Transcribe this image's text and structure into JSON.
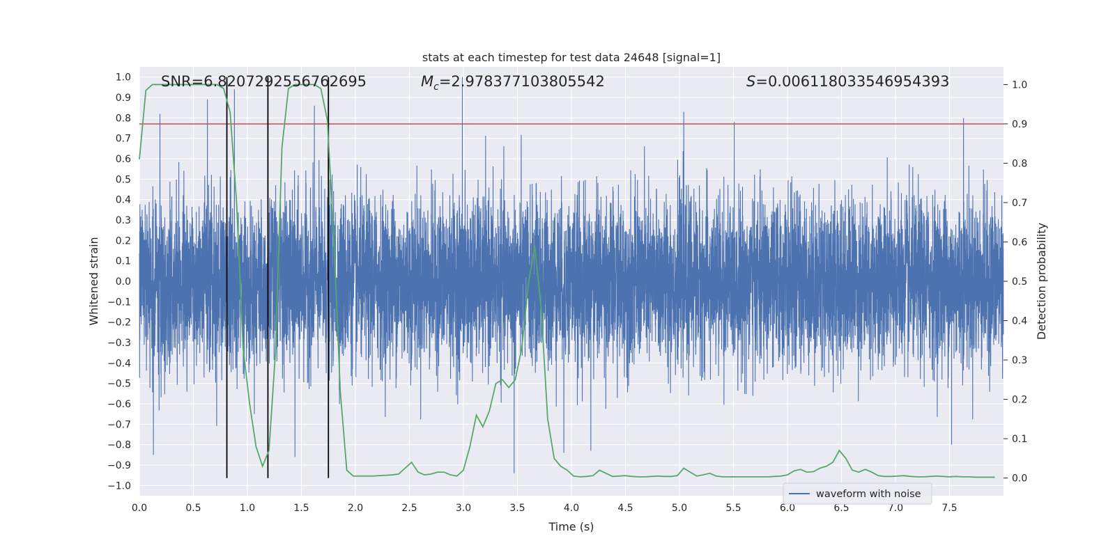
{
  "chart_data": {
    "type": "line",
    "title": "stats at each timestep for test data 24648 [signal=1]",
    "xlabel": "Time (s)",
    "ylabel": "Whitened strain",
    "y2label": "Detection probability",
    "xlim": [
      0.0,
      8.0
    ],
    "ylim": [
      -1.05,
      1.05
    ],
    "y2lim": [
      -0.045,
      1.045
    ],
    "xticks": [
      "0.0",
      "0.5",
      "1.0",
      "1.5",
      "2.0",
      "2.5",
      "3.0",
      "3.5",
      "4.0",
      "4.5",
      "5.0",
      "5.5",
      "6.0",
      "6.5",
      "7.0",
      "7.5"
    ],
    "yticks": [
      "1.0",
      "0.9",
      "0.8",
      "0.7",
      "0.6",
      "0.5",
      "0.4",
      "0.3",
      "0.2",
      "0.1",
      "0.0",
      "−0.1",
      "−0.2",
      "−0.3",
      "−0.4",
      "−0.5",
      "−0.6",
      "−0.7",
      "−0.8",
      "−0.9",
      "−1.0"
    ],
    "y2ticks": [
      "1.0",
      "0.9",
      "0.8",
      "0.7",
      "0.6",
      "0.5",
      "0.4",
      "0.3",
      "0.2",
      "0.1",
      "0.0"
    ],
    "grid": true,
    "legend": {
      "placement": "lower-right",
      "entries": [
        "waveform with noise"
      ]
    },
    "annotations": {
      "snr": "SNR=6.8207292556762695",
      "mc_symbol": "M",
      "mc_sub": "c",
      "mc_value": "=2.978377103805542",
      "s_symbol": "S",
      "s_value": "=0.006118033546954393"
    },
    "threshold_y2": 0.9,
    "vertical_lines_x": [
      0.81,
      1.19,
      1.75
    ],
    "series": [
      {
        "name": "waveform with noise",
        "kind": "noise-waveform",
        "color": "#4c72b0",
        "sample_rate_hz": 1024,
        "duration_s": 8.0,
        "peaks": [
          {
            "x": 0.88,
            "y": 0.94
          },
          {
            "x": 0.19,
            "y": 0.82
          },
          {
            "x": 0.63,
            "y": 0.89
          },
          {
            "x": 1.62,
            "y": 0.86
          },
          {
            "x": 2.99,
            "y": 1.0
          },
          {
            "x": 5.04,
            "y": 0.83
          },
          {
            "x": 7.63,
            "y": 0.8
          },
          {
            "x": 3.47,
            "y": -0.94
          },
          {
            "x": 0.13,
            "y": -0.85
          },
          {
            "x": 1.44,
            "y": -0.86
          },
          {
            "x": 4.18,
            "y": -0.83
          },
          {
            "x": 3.93,
            "y": -0.84
          },
          {
            "x": 7.52,
            "y": -0.8
          }
        ]
      },
      {
        "name": "detection probability",
        "axis": "right",
        "color": "#55a868",
        "x": [
          0.0,
          0.06,
          0.12,
          0.18,
          0.24,
          0.3,
          0.36,
          0.42,
          0.48,
          0.54,
          0.6,
          0.66,
          0.72,
          0.78,
          0.84,
          0.9,
          0.96,
          1.02,
          1.08,
          1.14,
          1.2,
          1.26,
          1.32,
          1.38,
          1.44,
          1.5,
          1.56,
          1.62,
          1.68,
          1.74,
          1.8,
          1.86,
          1.92,
          1.98,
          2.04,
          2.1,
          2.16,
          2.22,
          2.28,
          2.34,
          2.4,
          2.46,
          2.52,
          2.58,
          2.64,
          2.7,
          2.76,
          2.82,
          2.88,
          2.94,
          3.0,
          3.06,
          3.12,
          3.18,
          3.24,
          3.3,
          3.36,
          3.42,
          3.48,
          3.54,
          3.6,
          3.66,
          3.72,
          3.78,
          3.84,
          3.9,
          3.96,
          4.02,
          4.08,
          4.14,
          4.2,
          4.26,
          4.32,
          4.38,
          4.44,
          4.5,
          4.56,
          4.62,
          4.68,
          4.74,
          4.8,
          4.86,
          4.92,
          4.98,
          5.04,
          5.1,
          5.16,
          5.22,
          5.28,
          5.34,
          5.4,
          5.46,
          5.52,
          5.58,
          5.64,
          5.7,
          5.76,
          5.82,
          5.88,
          5.94,
          6.0,
          6.06,
          6.12,
          6.18,
          6.24,
          6.3,
          6.36,
          6.42,
          6.48,
          6.54,
          6.6,
          6.66,
          6.72,
          6.78,
          6.84,
          6.9,
          6.96,
          7.02,
          7.08,
          7.14,
          7.2,
          7.26,
          7.32,
          7.38,
          7.44,
          7.5,
          7.56,
          7.62,
          7.68,
          7.74,
          7.8,
          7.86,
          7.92
        ],
        "y": [
          0.81,
          0.985,
          1.0,
          1.0,
          1.0,
          1.0,
          1.0,
          1.0,
          1.0,
          1.0,
          1.0,
          1.0,
          1.0,
          0.99,
          0.93,
          0.7,
          0.33,
          0.19,
          0.08,
          0.03,
          0.07,
          0.32,
          0.84,
          0.99,
          1.0,
          1.0,
          1.0,
          1.0,
          0.99,
          0.91,
          0.61,
          0.22,
          0.02,
          0.005,
          0.005,
          0.005,
          0.005,
          0.006,
          0.007,
          0.008,
          0.01,
          0.025,
          0.04,
          0.015,
          0.008,
          0.01,
          0.015,
          0.015,
          0.008,
          0.005,
          0.02,
          0.08,
          0.16,
          0.13,
          0.17,
          0.24,
          0.25,
          0.23,
          0.25,
          0.33,
          0.49,
          0.59,
          0.43,
          0.15,
          0.05,
          0.03,
          0.02,
          0.005,
          0.003,
          0.004,
          0.006,
          0.02,
          0.012,
          0.004,
          0.005,
          0.006,
          0.004,
          0.003,
          0.003,
          0.004,
          0.005,
          0.004,
          0.004,
          0.006,
          0.025,
          0.015,
          0.005,
          0.008,
          0.012,
          0.005,
          0.003,
          0.003,
          0.003,
          0.003,
          0.003,
          0.003,
          0.003,
          0.003,
          0.004,
          0.005,
          0.008,
          0.018,
          0.022,
          0.015,
          0.016,
          0.025,
          0.03,
          0.04,
          0.07,
          0.05,
          0.02,
          0.015,
          0.022,
          0.015,
          0.006,
          0.004,
          0.004,
          0.005,
          0.006,
          0.004,
          0.003,
          0.003,
          0.004,
          0.005,
          0.004,
          0.003,
          0.004,
          0.003,
          0.003,
          0.002,
          0.002,
          0.002,
          0.002
        ]
      }
    ]
  }
}
